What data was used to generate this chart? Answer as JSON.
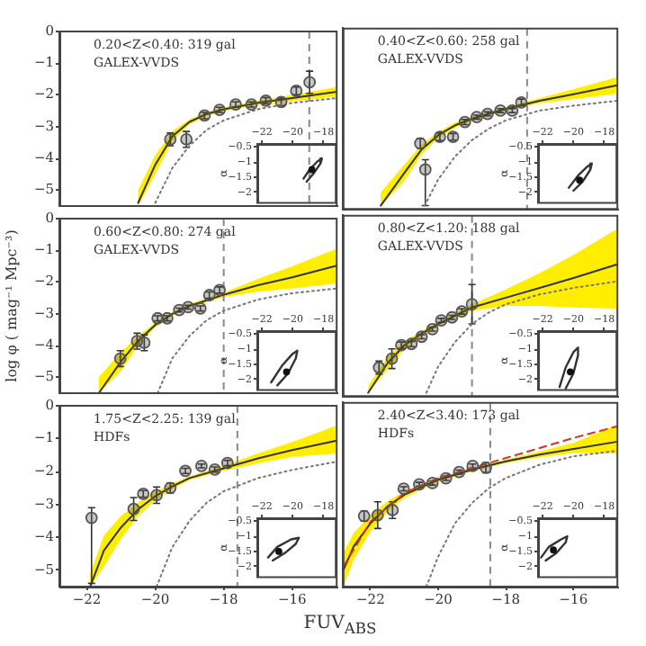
{
  "chart_data": [
    {
      "type": "scatter",
      "xlim": [
        -22.8,
        -14.7
      ],
      "xticks": [
        -22,
        -20,
        -18,
        -16
      ],
      "ylim": [
        -5.5,
        0
      ],
      "yticks": [
        0,
        -1,
        -2,
        -3,
        -4,
        -5
      ],
      "tick_labels": "y",
      "annotations": [
        "0.20<Z<0.40: 319 gal",
        "GALEX-VVDS"
      ],
      "ref_lines": [
        {
          "axis": "x",
          "value": -15.5,
          "color": "#888888",
          "line_style": "dashed"
        }
      ],
      "series": [
        {
          "type": "line",
          "color": "#333333",
          "marker": "none",
          "x": [
            -20.5,
            -20,
            -19.5,
            -19,
            -18.5,
            -18,
            -17,
            -16,
            -14.7
          ],
          "values": [
            -5.4,
            -4.2,
            -3.3,
            -2.85,
            -2.6,
            -2.45,
            -2.25,
            -2.1,
            -1.9
          ],
          "lower": [
            -5.5,
            -4.5,
            -3.45,
            -2.93,
            -2.66,
            -2.51,
            -2.32,
            -2.2,
            -2.05
          ],
          "upper": [
            -5.0,
            -3.9,
            -3.15,
            -2.77,
            -2.54,
            -2.39,
            -2.18,
            -2.0,
            -1.75
          ]
        },
        {
          "type": "line",
          "color": "#777777",
          "marker": "none",
          "line_style": "dotted",
          "x": [
            -20,
            -19.5,
            -19,
            -18.5,
            -18,
            -17,
            -16,
            -14.7
          ],
          "values": [
            -5.4,
            -4.3,
            -3.6,
            -3.1,
            -2.8,
            -2.45,
            -2.25,
            -2.1
          ]
        },
        {
          "color": "#555555",
          "marker": "circle",
          "x": [
            -19.56,
            -19.09,
            -18.56,
            -18.12,
            -17.65,
            -17.19,
            -16.77,
            -16.32,
            -15.88,
            -15.49
          ],
          "values": [
            -3.4,
            -3.4,
            -2.65,
            -2.47,
            -2.3,
            -2.3,
            -2.18,
            -2.22,
            -1.87,
            -1.6
          ],
          "errors": [
            0.2,
            0.25,
            0.1,
            0.08,
            0.08,
            0.08,
            0.1,
            0.12,
            0.12,
            0.35
          ]
        }
      ]
    },
    {
      "type": "line",
      "xlim": [
        -22.3,
        -17.2
      ],
      "xticks": [
        -22,
        -20,
        -18
      ],
      "ylim": [
        -2.35,
        -0.4
      ],
      "yticks": [
        -0.5,
        -1,
        -1.5,
        -2
      ],
      "ylabel": "α",
      "series": [
        {
          "color": "#333333",
          "marker": "none",
          "x": [
            -19.3,
            -18.9,
            -18.4,
            -18.1,
            -18.2,
            -18.6,
            -19.1
          ],
          "values": [
            -1.55,
            -1.25,
            -0.98,
            -0.88,
            -1.05,
            -1.35,
            -1.65
          ]
        },
        {
          "type": "scatter",
          "color": "#111111",
          "marker": "circle",
          "x": [
            -18.75
          ],
          "values": [
            -1.25
          ]
        }
      ]
    },
    {
      "type": "scatter",
      "xlim": [
        -22.8,
        -14.7
      ],
      "xticks": [
        -22,
        -20,
        -18,
        -16
      ],
      "ylim": [
        -5.5,
        0
      ],
      "yticks": [
        0,
        -1,
        -2,
        -3,
        -4,
        -5
      ],
      "tick_labels": false,
      "annotations": [
        "0.40<Z<0.60: 258 gal",
        "GALEX-VVDS"
      ],
      "ref_lines": [
        {
          "axis": "x",
          "value": -17.37,
          "color": "#888888",
          "line_style": "dashed"
        }
      ],
      "series": [
        {
          "type": "line",
          "color": "#333333",
          "marker": "none",
          "x": [
            -21.7,
            -21,
            -20.5,
            -20,
            -19.5,
            -19,
            -18,
            -17,
            -16,
            -14.7
          ],
          "values": [
            -5.4,
            -4.4,
            -3.7,
            -3.25,
            -2.95,
            -2.75,
            -2.45,
            -2.2,
            -2.0,
            -1.73
          ],
          "lower": [
            -5.4,
            -4.65,
            -3.85,
            -3.35,
            -3.03,
            -2.82,
            -2.51,
            -2.28,
            -2.15,
            -1.98
          ],
          "upper": [
            -5.0,
            -4.15,
            -3.55,
            -3.15,
            -2.87,
            -2.68,
            -2.39,
            -2.12,
            -1.85,
            -1.48
          ]
        },
        {
          "type": "line",
          "color": "#777777",
          "marker": "none",
          "line_style": "dotted",
          "x": [
            -20.4,
            -20,
            -19.5,
            -19,
            -18.5,
            -18,
            -17,
            -16,
            -14.7
          ],
          "values": [
            -5.4,
            -4.6,
            -3.9,
            -3.4,
            -3.05,
            -2.8,
            -2.5,
            -2.35,
            -2.2
          ]
        },
        {
          "color": "#555555",
          "marker": "circle",
          "x": [
            -20.53,
            -20.38,
            -19.95,
            -19.56,
            -19.21,
            -18.86,
            -18.54,
            -18.16,
            -17.81,
            -17.54
          ],
          "values": [
            -3.5,
            -4.3,
            -3.3,
            -3.3,
            -2.85,
            -2.7,
            -2.6,
            -2.5,
            -2.5,
            -2.25
          ],
          "errors": [
            0.15,
            [
              -5.4,
              -4.0
            ],
            0.12,
            0.1,
            0.08,
            0.06,
            0.06,
            0.06,
            0.06,
            0.1
          ]
        }
      ]
    },
    {
      "type": "line",
      "xlim": [
        -22.3,
        -17.2
      ],
      "xticks": [
        -22,
        -20,
        -18
      ],
      "ylim": [
        -2.35,
        -0.4
      ],
      "yticks": [
        -0.5,
        -1,
        -1.5,
        -2
      ],
      "ylabel": "α",
      "series": [
        {
          "color": "#333333",
          "marker": "none",
          "x": [
            -20.3,
            -19.7,
            -19.1,
            -18.8,
            -18.9,
            -19.4,
            -20.0
          ],
          "values": [
            -1.85,
            -1.45,
            -1.15,
            -1.05,
            -1.25,
            -1.65,
            -1.95
          ]
        },
        {
          "type": "scatter",
          "color": "#111111",
          "marker": "circle",
          "x": [
            -19.6
          ],
          "values": [
            -1.6
          ]
        }
      ]
    },
    {
      "type": "scatter",
      "xlim": [
        -22.8,
        -14.7
      ],
      "xticks": [
        -22,
        -20,
        -18,
        -16
      ],
      "ylim": [
        -5.5,
        0
      ],
      "yticks": [
        0,
        -1,
        -2,
        -3,
        -4,
        -5
      ],
      "tick_labels": "y",
      "ylabel": "log φ ( mag⁻¹ Mpc⁻³)",
      "annotations": [
        "0.60<Z<0.80: 274 gal",
        "GALEX-VVDS"
      ],
      "ref_lines": [
        {
          "axis": "x",
          "value": -18.0,
          "color": "#888888",
          "line_style": "dashed"
        }
      ],
      "series": [
        {
          "type": "line",
          "color": "#333333",
          "marker": "none",
          "x": [
            -21.65,
            -21,
            -20.5,
            -20,
            -19.5,
            -19,
            -18,
            -17,
            -16,
            -14.7
          ],
          "values": [
            -5.5,
            -4.5,
            -3.85,
            -3.35,
            -3.0,
            -2.75,
            -2.4,
            -2.1,
            -1.85,
            -1.48
          ],
          "lower": [
            -5.5,
            -4.8,
            -4.0,
            -3.43,
            -3.06,
            -2.81,
            -2.47,
            -2.3,
            -2.2,
            -2.05
          ],
          "upper": [
            -5.0,
            -4.2,
            -3.7,
            -3.27,
            -2.94,
            -2.69,
            -2.33,
            -1.9,
            -1.5,
            -0.95
          ]
        },
        {
          "type": "line",
          "color": "#777777",
          "marker": "none",
          "line_style": "dotted",
          "x": [
            -19.93,
            -19.5,
            -19,
            -18.5,
            -18,
            -17,
            -16,
            -14.7
          ],
          "values": [
            -5.5,
            -4.4,
            -3.7,
            -3.2,
            -2.9,
            -2.55,
            -2.35,
            -2.2
          ]
        },
        {
          "color": "#555555",
          "marker": "circle",
          "x": [
            -21.02,
            -20.53,
            -20.32,
            -19.93,
            -19.65,
            -19.3,
            -19.04,
            -18.68,
            -18.42,
            -18.12
          ],
          "values": [
            -4.41,
            -3.86,
            -3.91,
            -3.14,
            -3.14,
            -2.88,
            -2.79,
            -2.83,
            -2.41,
            -2.25
          ],
          "errors": [
            0.25,
            0.25,
            0.25,
            0.08,
            0.08,
            0.06,
            0.06,
            0.08,
            0.1,
            0.1
          ]
        }
      ]
    },
    {
      "type": "line",
      "xlim": [
        -22.3,
        -17.2
      ],
      "xticks": [
        -22,
        -20,
        -18
      ],
      "ylim": [
        -2.35,
        -0.4
      ],
      "yticks": [
        -0.5,
        -1,
        -1.5,
        -2
      ],
      "ylabel": "α",
      "series": [
        {
          "color": "#333333",
          "marker": "none",
          "x": [
            -21.4,
            -20.7,
            -20.0,
            -19.7,
            -19.8,
            -20.3,
            -21.0
          ],
          "values": [
            -2.1,
            -1.55,
            -1.15,
            -1.05,
            -1.3,
            -1.8,
            -2.2
          ]
        },
        {
          "type": "scatter",
          "color": "#111111",
          "marker": "circle",
          "x": [
            -20.4
          ],
          "values": [
            -1.75
          ]
        }
      ]
    },
    {
      "type": "scatter",
      "xlim": [
        -22.8,
        -14.7
      ],
      "xticks": [
        -22,
        -20,
        -18,
        -16
      ],
      "ylim": [
        -5.5,
        0
      ],
      "yticks": [
        0,
        -1,
        -2,
        -3,
        -4,
        -5
      ],
      "tick_labels": false,
      "annotations": [
        "0.80<Z<1.20: 188 gal",
        "GALEX-VVDS"
      ],
      "ref_lines": [
        {
          "axis": "x",
          "value": -19.0,
          "color": "#888888",
          "line_style": "dashed"
        }
      ],
      "series": [
        {
          "type": "line",
          "color": "#333333",
          "marker": "none",
          "x": [
            -22.07,
            -21.5,
            -21,
            -20.5,
            -20,
            -19.5,
            -19,
            -18,
            -17,
            -16,
            -14.7
          ],
          "values": [
            -5.4,
            -4.5,
            -3.95,
            -3.6,
            -3.3,
            -3.05,
            -2.8,
            -2.5,
            -2.2,
            -1.9,
            -1.48
          ],
          "lower": [
            -5.4,
            -4.7,
            -4.07,
            -3.68,
            -3.36,
            -3.12,
            -2.9,
            -2.75,
            -2.75,
            -2.8,
            -2.83
          ],
          "upper": [
            -5.2,
            -4.3,
            -3.83,
            -3.52,
            -3.24,
            -2.98,
            -2.7,
            -2.25,
            -1.75,
            -1.2,
            -0.4
          ]
        },
        {
          "type": "line",
          "color": "#777777",
          "marker": "none",
          "line_style": "dotted",
          "x": [
            -20.35,
            -20,
            -19.5,
            -19,
            -18.5,
            -18,
            -17,
            -16,
            -14.7
          ],
          "values": [
            -5.4,
            -4.6,
            -3.85,
            -3.3,
            -2.95,
            -2.7,
            -2.4,
            -2.2,
            -2.0
          ]
        },
        {
          "color": "#555555",
          "marker": "circle",
          "x": [
            -21.75,
            -21.37,
            -21.09,
            -20.79,
            -20.49,
            -20.17,
            -19.91,
            -19.59,
            -19.3,
            -19.0
          ],
          "values": [
            -4.63,
            -4.36,
            -3.95,
            -3.91,
            -3.69,
            -3.46,
            -3.19,
            -3.1,
            -2.92,
            -2.7
          ],
          "errors": [
            0.2,
            0.3,
            0.1,
            0.08,
            0.06,
            0.06,
            0.06,
            0.06,
            0.08,
            0.6
          ]
        }
      ]
    },
    {
      "type": "line",
      "xlim": [
        -22.3,
        -17.2
      ],
      "xticks": [
        -22,
        -20,
        -18
      ],
      "ylim": [
        -2.35,
        -0.4
      ],
      "yticks": [
        -0.5,
        -1,
        -1.5,
        -2
      ],
      "ylabel": "α",
      "series": [
        {
          "color": "#333333",
          "marker": "none",
          "x": [
            -20.9,
            -20.5,
            -20.0,
            -19.7,
            -19.7,
            -20.0,
            -20.5
          ],
          "values": [
            -2.25,
            -1.6,
            -1.1,
            -0.95,
            -1.2,
            -1.8,
            -2.3
          ]
        },
        {
          "type": "scatter",
          "color": "#111111",
          "marker": "circle",
          "x": [
            -20.2
          ],
          "values": [
            -1.75
          ]
        }
      ]
    },
    {
      "type": "scatter",
      "xlim": [
        -22.8,
        -14.7
      ],
      "xticks": [
        -22,
        -20,
        -18,
        -16
      ],
      "ylim": [
        -5.5,
        0
      ],
      "yticks": [
        0,
        -1,
        -2,
        -3,
        -4,
        -5
      ],
      "xlabel": "FUV$_{ABS}$",
      "annotations": [
        "1.75<Z<2.25: 139 gal",
        "HDFs"
      ],
      "ref_lines": [
        {
          "axis": "x",
          "value": -17.6,
          "color": "#888888",
          "line_style": "dashed"
        }
      ],
      "series": [
        {
          "type": "line",
          "color": "#333333",
          "marker": "none",
          "x": [
            -21.9,
            -21.5,
            -21,
            -20.5,
            -20,
            -19.5,
            -19,
            -18,
            -17,
            -16,
            -14.7
          ],
          "values": [
            -5.5,
            -4.4,
            -3.7,
            -3.15,
            -2.75,
            -2.45,
            -2.2,
            -1.9,
            -1.6,
            -1.35,
            -1.06
          ],
          "lower": [
            -5.5,
            -4.9,
            -4.05,
            -3.35,
            -2.88,
            -2.53,
            -2.26,
            -1.98,
            -1.75,
            -1.55,
            -1.45
          ],
          "upper": [
            -5.1,
            -3.95,
            -3.35,
            -2.95,
            -2.62,
            -2.37,
            -2.14,
            -1.82,
            -1.45,
            -1.1,
            -0.6
          ]
        },
        {
          "type": "line",
          "color": "#777777",
          "marker": "none",
          "line_style": "dotted",
          "x": [
            -19.96,
            -19.5,
            -19,
            -18.5,
            -18,
            -17,
            -16,
            -14.7
          ],
          "values": [
            -5.5,
            -4.3,
            -3.5,
            -2.95,
            -2.6,
            -2.2,
            -1.95,
            -1.7
          ]
        },
        {
          "color": "#555555",
          "marker": "circle",
          "x": [
            -21.86,
            -20.63,
            -20.35,
            -19.96,
            -19.56,
            -19.12,
            -18.65,
            -18.26,
            -17.89
          ],
          "values": [
            -3.41,
            -3.14,
            -2.68,
            -2.72,
            -2.5,
            -1.98,
            -1.83,
            -1.94,
            -1.74
          ],
          "errors": [
            [
              -5.4,
              -3.1
            ],
            0.35,
            0.1,
            0.25,
            0.15,
            0.08,
            0.06,
            0.08,
            0.08
          ]
        }
      ]
    },
    {
      "type": "line",
      "xlim": [
        -22.3,
        -17.2
      ],
      "xticks": [
        -22,
        -20,
        -18
      ],
      "ylim": [
        -2.35,
        -0.4
      ],
      "yticks": [
        -0.5,
        -1,
        -1.5,
        -2
      ],
      "ylabel": "α",
      "series": [
        {
          "color": "#333333",
          "marker": "none",
          "x": [
            -21.6,
            -21.0,
            -20.1,
            -19.6,
            -19.8,
            -20.5,
            -21.3
          ],
          "values": [
            -1.7,
            -1.35,
            -1.1,
            -1.05,
            -1.25,
            -1.55,
            -1.8
          ]
        },
        {
          "type": "scatter",
          "color": "#111111",
          "marker": "circle",
          "x": [
            -20.9
          ],
          "values": [
            -1.5
          ]
        }
      ]
    },
    {
      "type": "scatter",
      "xlim": [
        -22.8,
        -14.7
      ],
      "xticks": [
        -22,
        -20,
        -18,
        -16
      ],
      "ylim": [
        -5.5,
        0
      ],
      "yticks": [
        0,
        -1,
        -2,
        -3,
        -4,
        -5
      ],
      "tick_labels": "x",
      "annotations": [
        "2.40<Z<3.40: 173 gal",
        "HDFs"
      ],
      "ref_lines": [
        {
          "axis": "x",
          "value": -18.46,
          "color": "#888888",
          "line_style": "dashed"
        }
      ],
      "series": [
        {
          "type": "line",
          "color": "#333333",
          "marker": "none",
          "x": [
            -22.8,
            -22.5,
            -22,
            -21.5,
            -21,
            -20,
            -19,
            -18,
            -17,
            -16,
            -14.7
          ],
          "values": [
            -5.0,
            -4.3,
            -3.6,
            -3.1,
            -2.75,
            -2.3,
            -2.0,
            -1.75,
            -1.55,
            -1.38,
            -1.16
          ],
          "lower": [
            -5.5,
            -4.7,
            -3.85,
            -3.25,
            -2.85,
            -2.36,
            -2.05,
            -1.8,
            -1.63,
            -1.5,
            -1.52
          ],
          "upper": [
            -4.5,
            -3.9,
            -3.35,
            -2.95,
            -2.65,
            -2.24,
            -1.95,
            -1.7,
            -1.45,
            -1.2,
            -0.66
          ]
        },
        {
          "type": "line",
          "color": "#e03020",
          "marker": "none",
          "line_style": "dashed",
          "x": [
            -22.8,
            -22,
            -21,
            -20,
            -19,
            -18,
            -17,
            -16,
            -14.7
          ],
          "values": [
            -4.9,
            -3.55,
            -2.7,
            -2.25,
            -1.95,
            -1.65,
            -1.35,
            -1.05,
            -0.7
          ]
        },
        {
          "type": "line",
          "color": "#777777",
          "marker": "none",
          "line_style": "dotted",
          "x": [
            -20.35,
            -20,
            -19.5,
            -19,
            -18.5,
            -18,
            -17,
            -16,
            -14.7
          ],
          "values": [
            -5.5,
            -4.6,
            -3.6,
            -3.0,
            -2.55,
            -2.25,
            -1.85,
            -1.6,
            -1.43
          ]
        },
        {
          "color": "#555555",
          "marker": "circle",
          "x": [
            -22.19,
            -21.79,
            -21.35,
            -21.02,
            -20.56,
            -20.17,
            -19.77,
            -19.38,
            -18.98,
            -18.59
          ],
          "values": [
            -3.39,
            -3.36,
            -3.21,
            -2.57,
            -2.44,
            -2.4,
            -2.26,
            -2.07,
            -1.89,
            -1.94
          ],
          "errors": [
            0.15,
            0.4,
            0.25,
            0.06,
            0.06,
            0.06,
            0.06,
            0.06,
            0.06,
            0.15
          ]
        }
      ]
    },
    {
      "type": "line",
      "xlim": [
        -22.3,
        -17.2
      ],
      "xticks": [
        -22,
        -20,
        -18
      ],
      "ylim": [
        -2.35,
        -0.4
      ],
      "yticks": [
        -0.5,
        -1,
        -1.5,
        -2
      ],
      "ylabel": "α",
      "series": [
        {
          "color": "#333333",
          "marker": "none",
          "x": [
            -22.1,
            -21.6,
            -20.8,
            -20.4,
            -20.5,
            -21.1,
            -21.8
          ],
          "values": [
            -1.7,
            -1.35,
            -1.1,
            -1.0,
            -1.2,
            -1.55,
            -1.8
          ]
        },
        {
          "type": "scatter",
          "color": "#111111",
          "marker": "circle",
          "x": [
            -21.3
          ],
          "values": [
            -1.45
          ]
        }
      ]
    }
  ]
}
